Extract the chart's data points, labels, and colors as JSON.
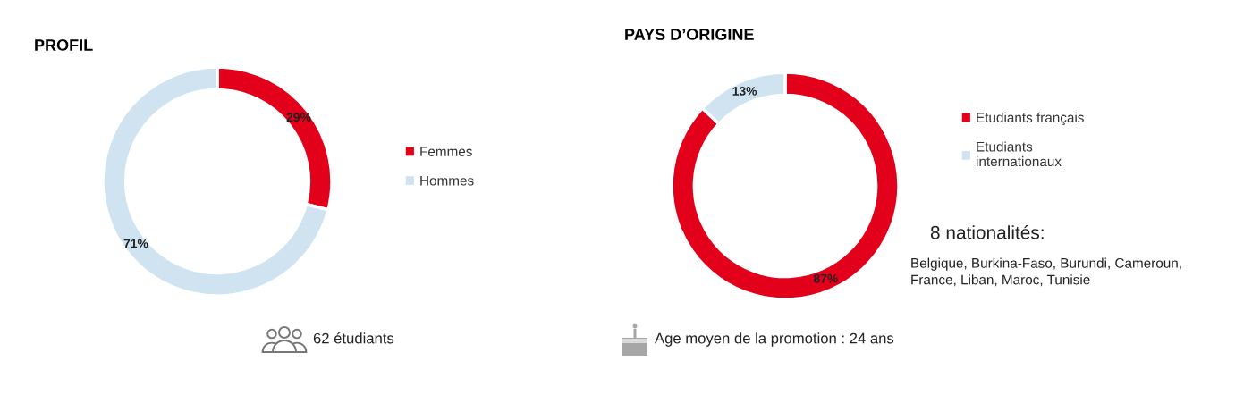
{
  "chart_data": [
    {
      "type": "donut",
      "title": "PROFIL",
      "categories": [
        "Femmes",
        "Hommes"
      ],
      "values": [
        29,
        71
      ],
      "colors": [
        "#e2001a",
        "#cfe3f1"
      ],
      "value_labels": [
        "29%",
        "71%"
      ],
      "legend": "right",
      "annotations": [
        "62 étudiants"
      ]
    },
    {
      "type": "donut",
      "title": "PAYS D’ORIGINE",
      "categories": [
        "Etudiants français",
        "Etudiants internationaux"
      ],
      "values": [
        87,
        13
      ],
      "colors": [
        "#e2001a",
        "#cfe3f1"
      ],
      "value_labels": [
        "87%",
        "13%"
      ],
      "legend": "right",
      "annotations": [
        "8 nationalités:",
        "Belgique, Burkina-Faso, Burundi, Cameroun,\nFrance, Liban, Maroc, Tunisie",
        "Age moyen de la promotion : 24 ans"
      ]
    }
  ]
}
